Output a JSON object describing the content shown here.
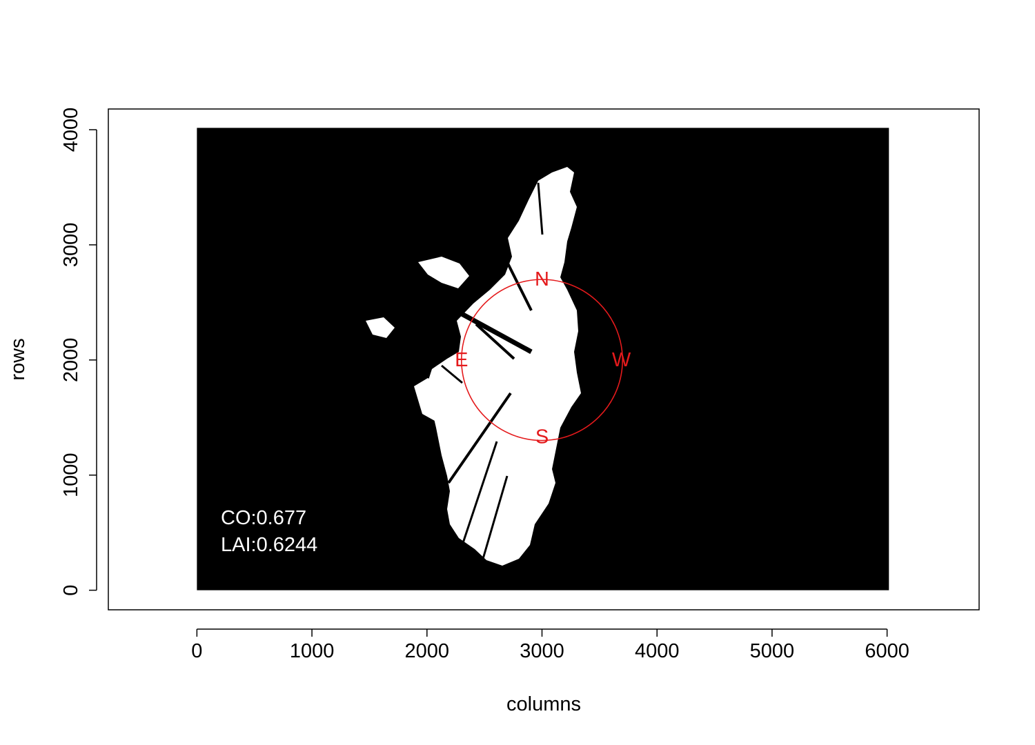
{
  "colors": {
    "image_background": "#000000",
    "canopy_gap": "#ffffff",
    "compass": "#e41a1c",
    "annotation_text": "#ffffff"
  },
  "chart_data": {
    "type": "raster-image",
    "xlabel": "columns",
    "ylabel": "rows",
    "xlim": [
      -770,
      6800
    ],
    "ylim": [
      -170,
      4180
    ],
    "xticks": [
      "0",
      "1000",
      "2000",
      "3000",
      "4000",
      "5000",
      "6000"
    ],
    "yticks": [
      "0",
      "1000",
      "2000",
      "3000",
      "4000"
    ],
    "image_extent": {
      "x": [
        0,
        6016
      ],
      "y": [
        0,
        4016
      ]
    },
    "circle": {
      "center": [
        3000,
        2000
      ],
      "radius": 700
    },
    "compass": {
      "N": {
        "label": "N",
        "x": 3000,
        "y": 2700
      },
      "E": {
        "label": "E",
        "x": 2300,
        "y": 2000
      },
      "S": {
        "label": "S",
        "x": 3000,
        "y": 1330
      },
      "W": {
        "label": "W",
        "x": 3690,
        "y": 2000
      }
    },
    "annotations": {
      "co": "CO:0.677",
      "lai": "LAI:0.6244"
    },
    "grid": false,
    "legend": "none"
  }
}
